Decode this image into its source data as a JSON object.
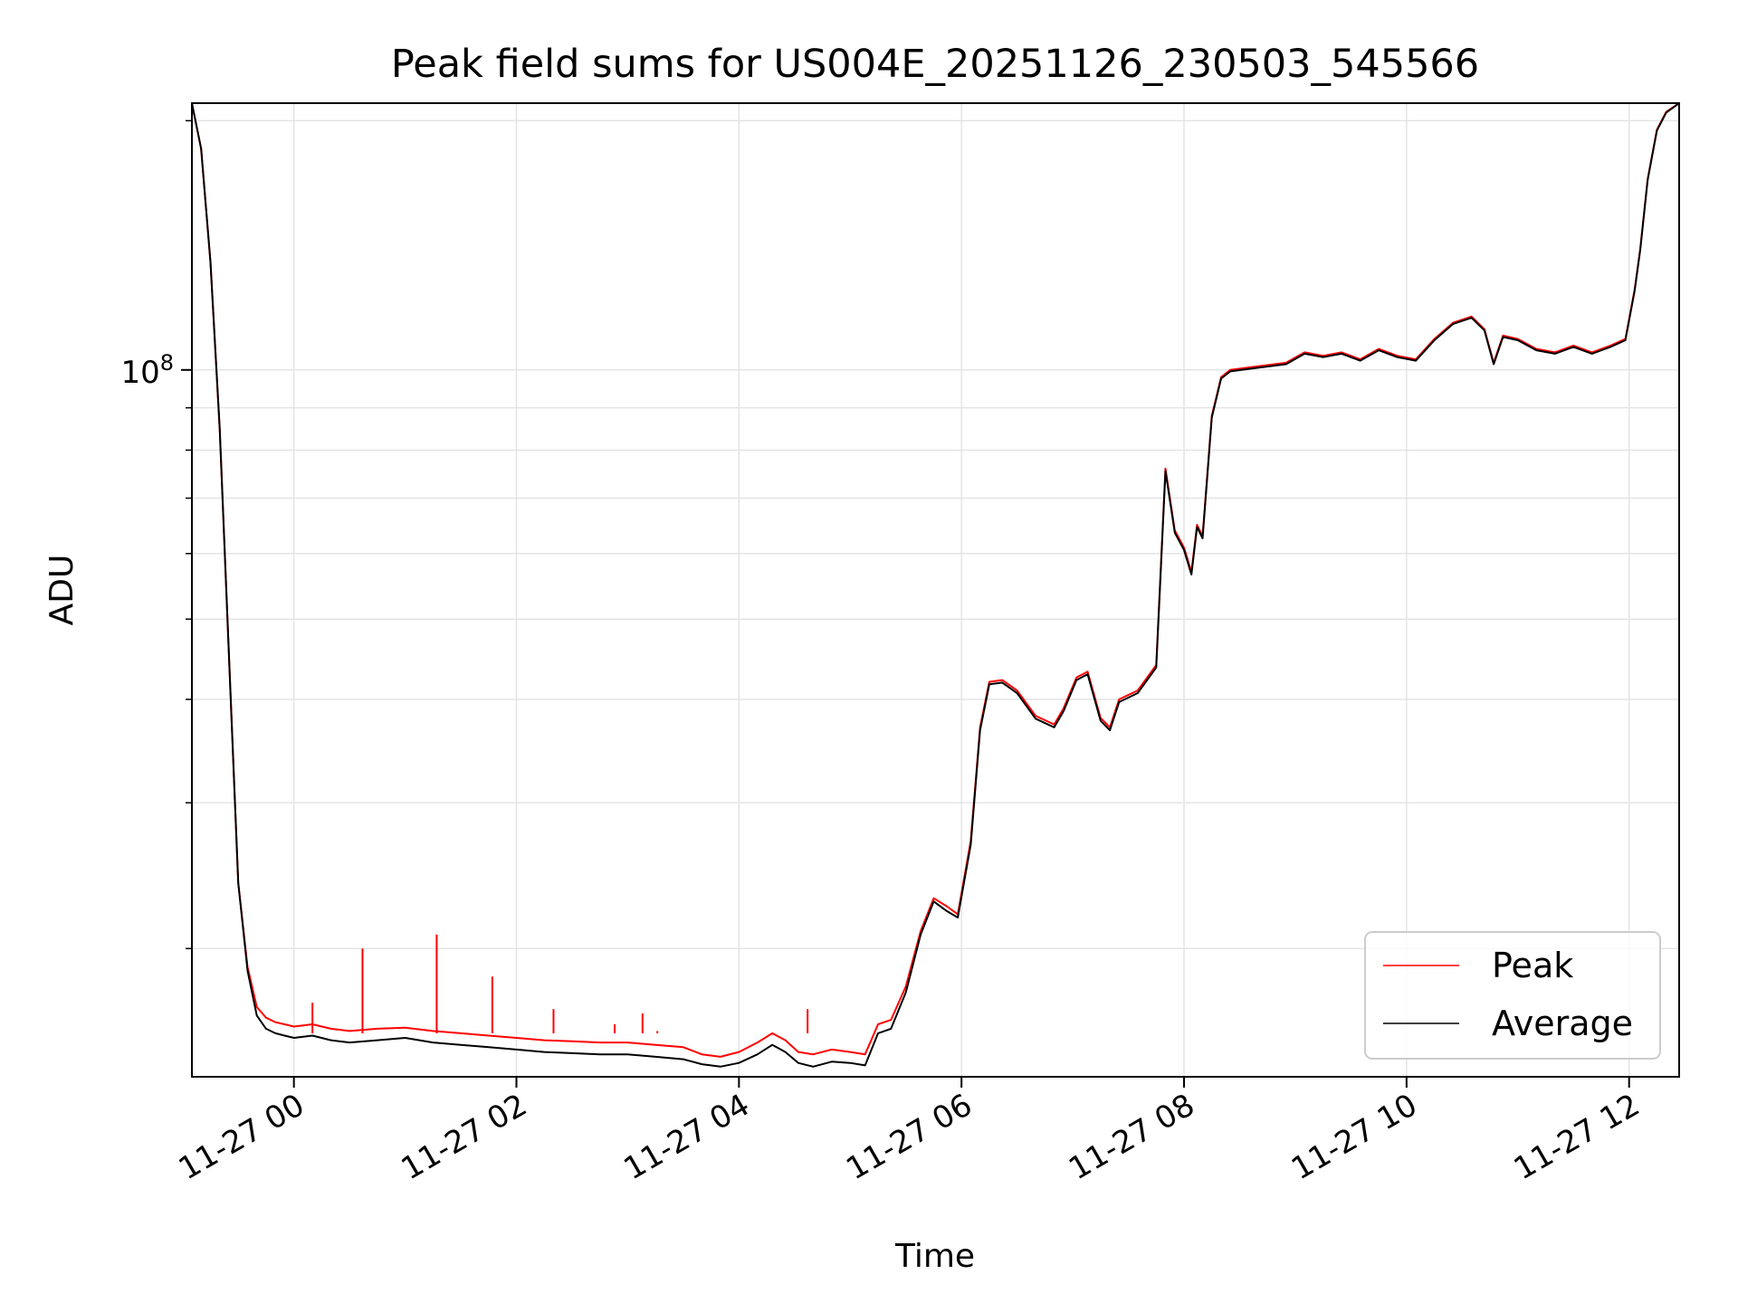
{
  "chart_data": {
    "type": "line",
    "title": "Peak field sums for US004E_20251126_230503_545566",
    "xlabel": "Time",
    "ylabel": "ADU",
    "yscale": "log",
    "ylim": [
      14000000,
      210000000
    ],
    "xlim": [
      "2025-11-26T23:05",
      "2025-11-27T12:27"
    ],
    "grid": true,
    "legend_position": "lower-right",
    "x_ticks": [
      {
        "value": "2025-11-27T00:00",
        "label": "11-27 00"
      },
      {
        "value": "2025-11-27T02:00",
        "label": "11-27 02"
      },
      {
        "value": "2025-11-27T04:00",
        "label": "11-27 04"
      },
      {
        "value": "2025-11-27T06:00",
        "label": "11-27 06"
      },
      {
        "value": "2025-11-27T08:00",
        "label": "11-27 08"
      },
      {
        "value": "2025-11-27T10:00",
        "label": "11-27 10"
      },
      {
        "value": "2025-11-27T12:00",
        "label": "11-27 12"
      }
    ],
    "y_ticks": [
      {
        "value": 100000000,
        "label": "10",
        "exponent": "8"
      }
    ],
    "series": [
      {
        "name": "Peak",
        "color": "#ff0000",
        "x": [
          "2025-11-26T23:05",
          "2025-11-26T23:10",
          "2025-11-26T23:15",
          "2025-11-26T23:20",
          "2025-11-26T23:25",
          "2025-11-26T23:30",
          "2025-11-26T23:35",
          "2025-11-26T23:40",
          "2025-11-26T23:45",
          "2025-11-26T23:50",
          "2025-11-26T23:55",
          "2025-11-27T00:00",
          "2025-11-27T00:10",
          "2025-11-27T00:20",
          "2025-11-27T00:30",
          "2025-11-27T00:45",
          "2025-11-27T01:00",
          "2025-11-27T01:15",
          "2025-11-27T01:30",
          "2025-11-27T01:45",
          "2025-11-27T02:00",
          "2025-11-27T02:15",
          "2025-11-27T02:30",
          "2025-11-27T02:45",
          "2025-11-27T03:00",
          "2025-11-27T03:15",
          "2025-11-27T03:30",
          "2025-11-27T03:40",
          "2025-11-27T03:50",
          "2025-11-27T04:00",
          "2025-11-27T04:10",
          "2025-11-27T04:18",
          "2025-11-27T04:25",
          "2025-11-27T04:32",
          "2025-11-27T04:40",
          "2025-11-27T04:50",
          "2025-11-27T05:00",
          "2025-11-27T05:08",
          "2025-11-27T05:15",
          "2025-11-27T05:22",
          "2025-11-27T05:30",
          "2025-11-27T05:38",
          "2025-11-27T05:45",
          "2025-11-27T05:52",
          "2025-11-27T05:58",
          "2025-11-27T06:05",
          "2025-11-27T06:10",
          "2025-11-27T06:15",
          "2025-11-27T06:22",
          "2025-11-27T06:30",
          "2025-11-27T06:40",
          "2025-11-27T06:50",
          "2025-11-27T06:55",
          "2025-11-27T07:02",
          "2025-11-27T07:08",
          "2025-11-27T07:15",
          "2025-11-27T07:20",
          "2025-11-27T07:25",
          "2025-11-27T07:35",
          "2025-11-27T07:45",
          "2025-11-27T07:50",
          "2025-11-27T07:55",
          "2025-11-27T08:00",
          "2025-11-27T08:04",
          "2025-11-27T08:07",
          "2025-11-27T08:10",
          "2025-11-27T08:15",
          "2025-11-27T08:20",
          "2025-11-27T08:25",
          "2025-11-27T08:40",
          "2025-11-27T08:55",
          "2025-11-27T09:05",
          "2025-11-27T09:15",
          "2025-11-27T09:25",
          "2025-11-27T09:35",
          "2025-11-27T09:45",
          "2025-11-27T09:55",
          "2025-11-27T10:05",
          "2025-11-27T10:15",
          "2025-11-27T10:25",
          "2025-11-27T10:35",
          "2025-11-27T10:42",
          "2025-11-27T10:47",
          "2025-11-27T10:52",
          "2025-11-27T11:00",
          "2025-11-27T11:10",
          "2025-11-27T11:20",
          "2025-11-27T11:30",
          "2025-11-27T11:40",
          "2025-11-27T11:50",
          "2025-11-27T11:58",
          "2025-11-27T12:03",
          "2025-11-27T12:06",
          "2025-11-27T12:10",
          "2025-11-27T12:15",
          "2025-11-27T12:20",
          "2025-11-27T12:27"
        ],
        "values": [
          210000000,
          185000000,
          135000000,
          85000000,
          45000000,
          24000000,
          19000000,
          17000000,
          16500000,
          16300000,
          16200000,
          16100000,
          16200000,
          16000000,
          15900000,
          16000000,
          16050000,
          15900000,
          15800000,
          15700000,
          15600000,
          15500000,
          15450000,
          15400000,
          15400000,
          15300000,
          15200000,
          14900000,
          14800000,
          15000000,
          15400000,
          15800000,
          15500000,
          15000000,
          14900000,
          15100000,
          15000000,
          14900000,
          16200000,
          16400000,
          18000000,
          21000000,
          23000000,
          22500000,
          22000000,
          27000000,
          37000000,
          42000000,
          42200000,
          41000000,
          38200000,
          37300000,
          39000000,
          42500000,
          43200000,
          38000000,
          37000000,
          40000000,
          41000000,
          44000000,
          76000000,
          64000000,
          61000000,
          57000000,
          65000000,
          63000000,
          88000000,
          98000000,
          100000000,
          101000000,
          102000000,
          105000000,
          104000000,
          105000000,
          103000000,
          106000000,
          104000000,
          103000000,
          109000000,
          114000000,
          116000000,
          112000000,
          102000000,
          110000000,
          109000000,
          106000000,
          105000000,
          107000000,
          105000000,
          107000000,
          109000000,
          125000000,
          140000000,
          170000000,
          195000000,
          205000000,
          210000000
        ]
      },
      {
        "name": "Average",
        "color": "#000000",
        "x": [
          "2025-11-26T23:05",
          "2025-11-26T23:10",
          "2025-11-26T23:15",
          "2025-11-26T23:20",
          "2025-11-26T23:25",
          "2025-11-26T23:30",
          "2025-11-26T23:35",
          "2025-11-26T23:40",
          "2025-11-26T23:45",
          "2025-11-26T23:50",
          "2025-11-26T23:55",
          "2025-11-27T00:00",
          "2025-11-27T00:10",
          "2025-11-27T00:20",
          "2025-11-27T00:30",
          "2025-11-27T00:45",
          "2025-11-27T01:00",
          "2025-11-27T01:15",
          "2025-11-27T01:30",
          "2025-11-27T01:45",
          "2025-11-27T02:00",
          "2025-11-27T02:15",
          "2025-11-27T02:30",
          "2025-11-27T02:45",
          "2025-11-27T03:00",
          "2025-11-27T03:15",
          "2025-11-27T03:30",
          "2025-11-27T03:40",
          "2025-11-27T03:50",
          "2025-11-27T04:00",
          "2025-11-27T04:10",
          "2025-11-27T04:18",
          "2025-11-27T04:25",
          "2025-11-27T04:32",
          "2025-11-27T04:40",
          "2025-11-27T04:50",
          "2025-11-27T05:00",
          "2025-11-27T05:08",
          "2025-11-27T05:15",
          "2025-11-27T05:22",
          "2025-11-27T05:30",
          "2025-11-27T05:38",
          "2025-11-27T05:45",
          "2025-11-27T05:52",
          "2025-11-27T05:58",
          "2025-11-27T06:05",
          "2025-11-27T06:10",
          "2025-11-27T06:15",
          "2025-11-27T06:22",
          "2025-11-27T06:30",
          "2025-11-27T06:40",
          "2025-11-27T06:50",
          "2025-11-27T06:55",
          "2025-11-27T07:02",
          "2025-11-27T07:08",
          "2025-11-27T07:15",
          "2025-11-27T07:20",
          "2025-11-27T07:25",
          "2025-11-27T07:35",
          "2025-11-27T07:45",
          "2025-11-27T07:50",
          "2025-11-27T07:55",
          "2025-11-27T08:00",
          "2025-11-27T08:04",
          "2025-11-27T08:07",
          "2025-11-27T08:10",
          "2025-11-27T08:15",
          "2025-11-27T08:20",
          "2025-11-27T08:25",
          "2025-11-27T08:40",
          "2025-11-27T08:55",
          "2025-11-27T09:05",
          "2025-11-27T09:15",
          "2025-11-27T09:25",
          "2025-11-27T09:35",
          "2025-11-27T09:45",
          "2025-11-27T09:55",
          "2025-11-27T10:05",
          "2025-11-27T10:15",
          "2025-11-27T10:25",
          "2025-11-27T10:35",
          "2025-11-27T10:42",
          "2025-11-27T10:47",
          "2025-11-27T10:52",
          "2025-11-27T11:00",
          "2025-11-27T11:10",
          "2025-11-27T11:20",
          "2025-11-27T11:30",
          "2025-11-27T11:40",
          "2025-11-27T11:50",
          "2025-11-27T11:58",
          "2025-11-27T12:03",
          "2025-11-27T12:06",
          "2025-11-27T12:10",
          "2025-11-27T12:15",
          "2025-11-27T12:20",
          "2025-11-27T12:27"
        ],
        "values": [
          210000000,
          185000000,
          135000000,
          85000000,
          45000000,
          24000000,
          18800000,
          16600000,
          16000000,
          15800000,
          15700000,
          15600000,
          15700000,
          15500000,
          15400000,
          15500000,
          15600000,
          15400000,
          15300000,
          15200000,
          15100000,
          15000000,
          14950000,
          14900000,
          14900000,
          14800000,
          14700000,
          14500000,
          14400000,
          14550000,
          14900000,
          15300000,
          15000000,
          14550000,
          14400000,
          14600000,
          14550000,
          14450000,
          15800000,
          16000000,
          17700000,
          20800000,
          22800000,
          22200000,
          21800000,
          26700000,
          36700000,
          41700000,
          41900000,
          40700000,
          37900000,
          37000000,
          38700000,
          42200000,
          42900000,
          37700000,
          36700000,
          39700000,
          40700000,
          43700000,
          75500000,
          63600000,
          60600000,
          56600000,
          64600000,
          62600000,
          87600000,
          97600000,
          99600000,
          100600000,
          101600000,
          104600000,
          103600000,
          104600000,
          102600000,
          105600000,
          103600000,
          102600000,
          108600000,
          113600000,
          115600000,
          111600000,
          101600000,
          109600000,
          108600000,
          105600000,
          104600000,
          106600000,
          104600000,
          106600000,
          108600000,
          124600000,
          139600000,
          169600000,
          194600000,
          204600000,
          210000000
        ]
      }
    ],
    "spikes": {
      "series": "Peak",
      "x": [
        "2025-11-27T00:10",
        "2025-11-27T00:37",
        "2025-11-27T01:17",
        "2025-11-27T01:47",
        "2025-11-27T02:20",
        "2025-11-27T02:53",
        "2025-11-27T03:08",
        "2025-11-27T03:16",
        "2025-11-27T04:37"
      ],
      "values": [
        17200000,
        20000000,
        20800000,
        18500000,
        16900000,
        16200000,
        16700000,
        15900000,
        16900000
      ]
    }
  }
}
